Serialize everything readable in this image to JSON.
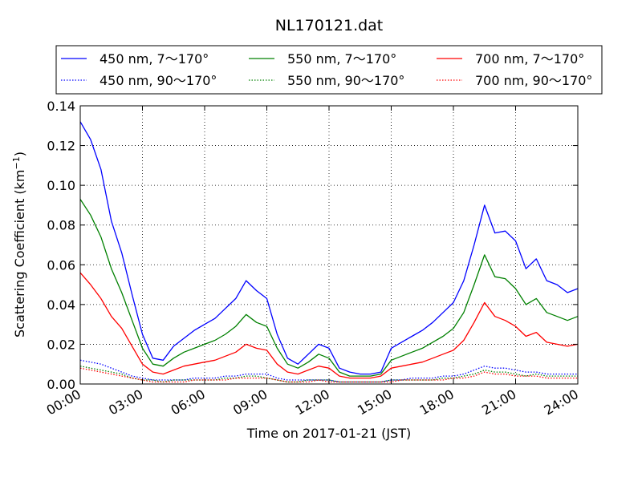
{
  "chart_data": {
    "type": "line",
    "title": "NL170121.dat",
    "xlabel": "Time on 2017-01-21 (JST)",
    "ylabel_main": "Scattering Coefficient (km",
    "ylabel_sup": "−1",
    "ylabel_close": ")",
    "xlim": [
      0,
      24
    ],
    "ylim": [
      0,
      0.14
    ],
    "grid": true,
    "grid_style": "dotted",
    "legend_position": "top, above plot, 3 columns",
    "x_ticks": [
      {
        "value": 0,
        "label": "00:00"
      },
      {
        "value": 3,
        "label": "03:00"
      },
      {
        "value": 6,
        "label": "06:00"
      },
      {
        "value": 9,
        "label": "09:00"
      },
      {
        "value": 12,
        "label": "12:00"
      },
      {
        "value": 15,
        "label": "15:00"
      },
      {
        "value": 18,
        "label": "18:00"
      },
      {
        "value": 21,
        "label": "21:00"
      },
      {
        "value": 24,
        "label": "24:00"
      }
    ],
    "y_ticks": [
      {
        "value": 0,
        "label": "0.00"
      },
      {
        "value": 0.02,
        "label": "0.02"
      },
      {
        "value": 0.04,
        "label": "0.04"
      },
      {
        "value": 0.06,
        "label": "0.06"
      },
      {
        "value": 0.08,
        "label": "0.08"
      },
      {
        "value": 0.1,
        "label": "0.10"
      },
      {
        "value": 0.12,
        "label": "0.12"
      },
      {
        "value": 0.14,
        "label": "0.14"
      }
    ],
    "x": [
      0,
      0.5,
      1,
      1.5,
      2,
      2.5,
      3,
      3.5,
      4,
      4.5,
      5,
      5.5,
      6,
      6.5,
      7,
      7.5,
      8,
      8.5,
      9,
      9.5,
      10,
      10.5,
      11,
      11.5,
      12,
      12.5,
      13,
      13.5,
      14,
      14.5,
      15,
      15.5,
      16,
      16.5,
      17,
      17.5,
      18,
      18.5,
      19,
      19.5,
      20,
      20.5,
      21,
      21.5,
      22,
      22.5,
      23,
      23.5,
      24
    ],
    "series": [
      {
        "name": "450 nm, 7～170°",
        "color": "#0000ff",
        "style": "solid",
        "values": [
          0.132,
          0.123,
          0.108,
          0.082,
          0.066,
          0.045,
          0.025,
          0.013,
          0.012,
          0.019,
          0.023,
          0.027,
          0.03,
          0.033,
          0.038,
          0.043,
          0.052,
          0.047,
          0.043,
          0.025,
          0.013,
          0.01,
          0.015,
          0.02,
          0.018,
          0.008,
          0.006,
          0.005,
          0.005,
          0.006,
          0.018,
          0.021,
          0.024,
          0.027,
          0.031,
          0.036,
          0.041,
          0.052,
          0.07,
          0.09,
          0.076,
          0.077,
          0.072,
          0.058,
          0.063,
          0.052,
          0.05,
          0.046,
          0.048
        ]
      },
      {
        "name": "550 nm, 7～170°",
        "color": "#008000",
        "style": "solid",
        "values": [
          0.093,
          0.085,
          0.074,
          0.058,
          0.046,
          0.032,
          0.018,
          0.01,
          0.009,
          0.013,
          0.016,
          0.018,
          0.02,
          0.022,
          0.025,
          0.029,
          0.035,
          0.031,
          0.029,
          0.018,
          0.01,
          0.008,
          0.011,
          0.015,
          0.013,
          0.006,
          0.004,
          0.004,
          0.004,
          0.005,
          0.012,
          0.014,
          0.016,
          0.018,
          0.021,
          0.024,
          0.028,
          0.036,
          0.05,
          0.065,
          0.054,
          0.053,
          0.048,
          0.04,
          0.043,
          0.036,
          0.034,
          0.032,
          0.034
        ]
      },
      {
        "name": "700 nm, 7～170°",
        "color": "#ff0000",
        "style": "solid",
        "values": [
          0.056,
          0.05,
          0.043,
          0.034,
          0.028,
          0.019,
          0.01,
          0.006,
          0.005,
          0.007,
          0.009,
          0.01,
          0.011,
          0.012,
          0.014,
          0.016,
          0.02,
          0.018,
          0.017,
          0.01,
          0.006,
          0.005,
          0.007,
          0.009,
          0.008,
          0.004,
          0.003,
          0.003,
          0.003,
          0.004,
          0.008,
          0.009,
          0.01,
          0.011,
          0.013,
          0.015,
          0.017,
          0.022,
          0.031,
          0.041,
          0.034,
          0.032,
          0.029,
          0.024,
          0.026,
          0.021,
          0.02,
          0.019,
          0.02
        ]
      },
      {
        "name": "450 nm, 90～170°",
        "color": "#0000ff",
        "style": "dotted",
        "values": [
          0.012,
          0.011,
          0.01,
          0.008,
          0.006,
          0.004,
          0.003,
          0.002,
          0.002,
          0.002,
          0.002,
          0.003,
          0.003,
          0.003,
          0.004,
          0.004,
          0.005,
          0.005,
          0.005,
          0.003,
          0.002,
          0.002,
          0.002,
          0.002,
          0.002,
          0.001,
          0.001,
          0.001,
          0.001,
          0.001,
          0.002,
          0.002,
          0.003,
          0.003,
          0.003,
          0.004,
          0.004,
          0.005,
          0.007,
          0.009,
          0.008,
          0.008,
          0.007,
          0.006,
          0.006,
          0.005,
          0.005,
          0.005,
          0.005
        ]
      },
      {
        "name": "550 nm, 90～170°",
        "color": "#008000",
        "style": "dotted",
        "values": [
          0.009,
          0.008,
          0.007,
          0.006,
          0.005,
          0.003,
          0.002,
          0.002,
          0.001,
          0.002,
          0.002,
          0.002,
          0.002,
          0.002,
          0.003,
          0.003,
          0.004,
          0.004,
          0.003,
          0.002,
          0.001,
          0.001,
          0.002,
          0.002,
          0.002,
          0.001,
          0.001,
          0.001,
          0.001,
          0.001,
          0.002,
          0.002,
          0.002,
          0.002,
          0.002,
          0.003,
          0.003,
          0.004,
          0.005,
          0.007,
          0.006,
          0.006,
          0.005,
          0.004,
          0.005,
          0.004,
          0.004,
          0.004,
          0.004
        ]
      },
      {
        "name": "700 nm, 90～170°",
        "color": "#ff0000",
        "style": "dotted",
        "values": [
          0.008,
          0.007,
          0.006,
          0.005,
          0.004,
          0.003,
          0.002,
          0.001,
          0.001,
          0.001,
          0.001,
          0.002,
          0.002,
          0.002,
          0.002,
          0.003,
          0.003,
          0.003,
          0.003,
          0.002,
          0.001,
          0.001,
          0.001,
          0.002,
          0.001,
          0.001,
          0.001,
          0.001,
          0.001,
          0.001,
          0.001,
          0.002,
          0.002,
          0.002,
          0.002,
          0.002,
          0.003,
          0.003,
          0.004,
          0.006,
          0.005,
          0.005,
          0.004,
          0.004,
          0.004,
          0.003,
          0.003,
          0.003,
          0.003
        ]
      }
    ]
  }
}
